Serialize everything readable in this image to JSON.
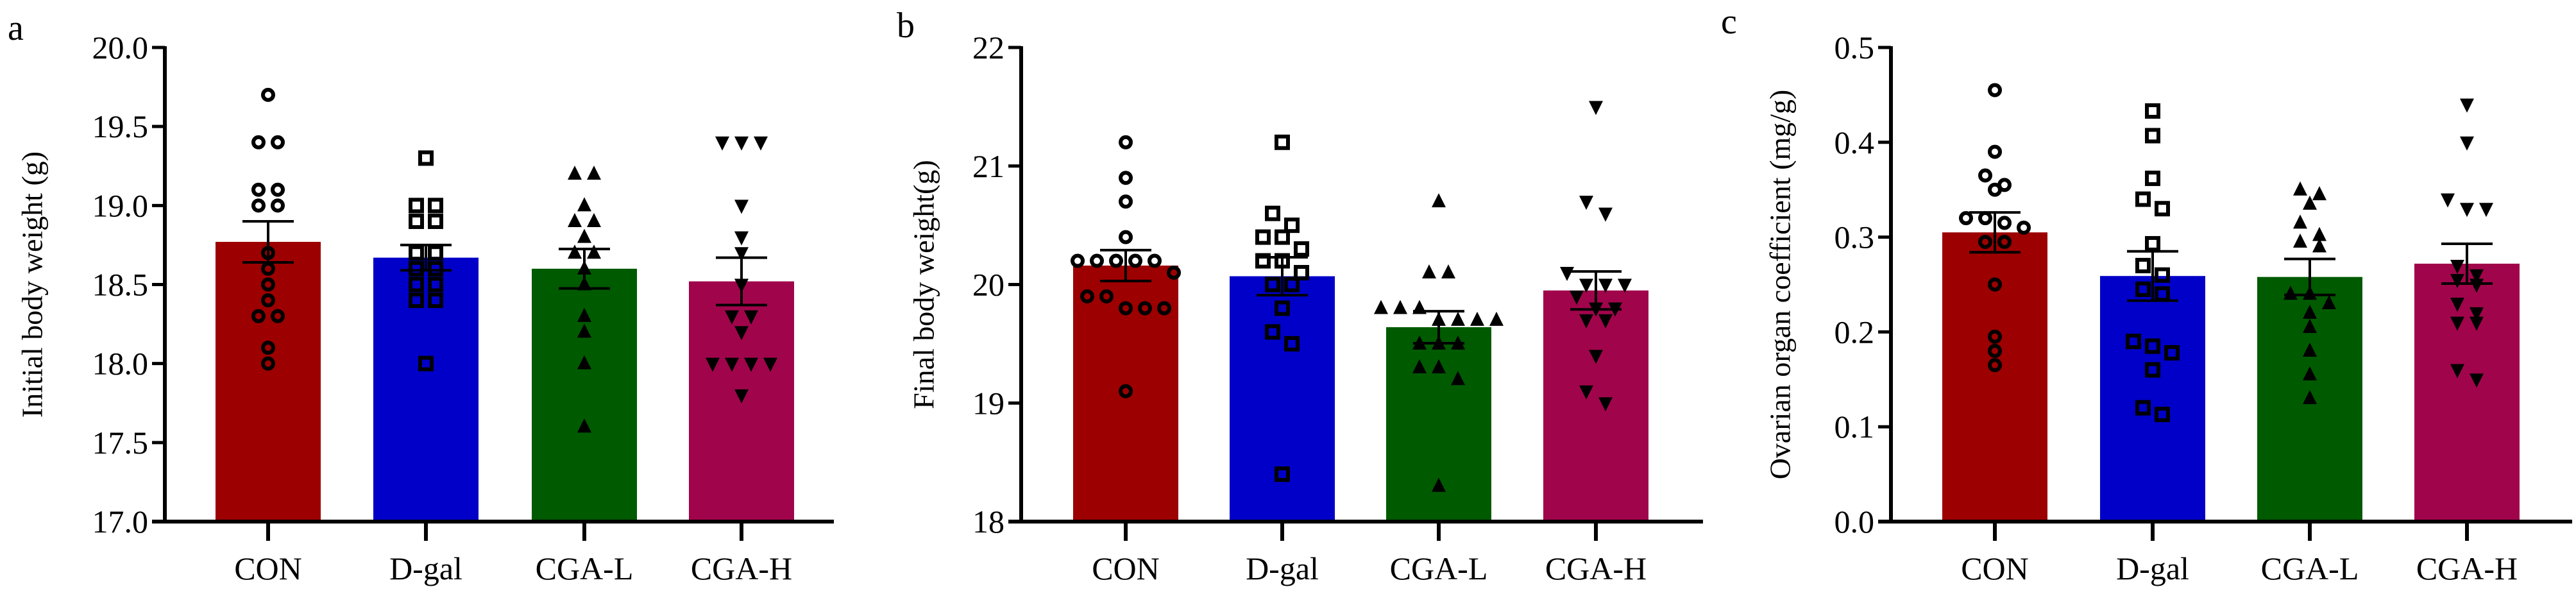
{
  "chart_data": [
    {
      "type": "bar",
      "panel_label": "a",
      "ylabel": "Initial body weight (g)",
      "xlabel": "",
      "ylim": [
        17.0,
        20.0
      ],
      "yticks": [
        "17.0",
        "17.5",
        "18.0",
        "18.5",
        "19.0",
        "19.5",
        "20.0"
      ],
      "categories": [
        "CON",
        "D-gal",
        "CGA-L",
        "CGA-H"
      ],
      "means": [
        18.77,
        18.67,
        18.6,
        18.52
      ],
      "sem": [
        0.13,
        0.08,
        0.125,
        0.15
      ],
      "points": [
        [
          19.7,
          19.4,
          19.4,
          19.1,
          19.1,
          19.0,
          19.0,
          18.7,
          18.6,
          18.5,
          18.4,
          18.3,
          18.3,
          18.1,
          18.0
        ],
        [
          19.3,
          19.0,
          19.0,
          18.9,
          18.9,
          18.7,
          18.7,
          18.6,
          18.6,
          18.5,
          18.5,
          18.4,
          18.4,
          18.0
        ],
        [
          19.2,
          19.2,
          19.0,
          18.9,
          18.9,
          18.8,
          18.7,
          18.7,
          18.6,
          18.5,
          18.3,
          18.2,
          18.0,
          17.6
        ],
        [
          19.4,
          19.4,
          19.4,
          19.0,
          18.8,
          18.7,
          18.5,
          18.3,
          18.3,
          18.2,
          18.0,
          18.0,
          18.0,
          18.0,
          17.8
        ]
      ]
    },
    {
      "type": "bar",
      "panel_label": "b",
      "ylabel": "Final body weight(g)",
      "xlabel": "",
      "ylim": [
        18,
        22
      ],
      "yticks": [
        "18",
        "19",
        "20",
        "21",
        "22"
      ],
      "categories": [
        "CON",
        "D-gal",
        "CGA-L",
        "CGA-H"
      ],
      "means": [
        20.16,
        20.07,
        19.64,
        19.95
      ],
      "sem": [
        0.13,
        0.16,
        0.135,
        0.16
      ],
      "points": [
        [
          21.2,
          20.9,
          20.7,
          20.4,
          20.2,
          20.2,
          20.2,
          20.2,
          20.2,
          20.1,
          19.9,
          19.9,
          19.8,
          19.8,
          19.8,
          19.1
        ],
        [
          21.2,
          20.6,
          20.5,
          20.4,
          20.4,
          20.3,
          20.2,
          20.2,
          20.1,
          20.0,
          20.0,
          19.8,
          19.6,
          19.5,
          18.4
        ],
        [
          20.7,
          20.1,
          20.1,
          19.8,
          19.8,
          19.8,
          19.7,
          19.7,
          19.7,
          19.7,
          19.5,
          19.5,
          19.5,
          19.3,
          19.3,
          19.2,
          18.3
        ],
        [
          21.5,
          20.7,
          20.6,
          20.1,
          20.0,
          20.0,
          20.0,
          19.9,
          19.8,
          19.8,
          19.7,
          19.7,
          19.4,
          19.1,
          19.0
        ]
      ]
    },
    {
      "type": "bar",
      "panel_label": "c",
      "ylabel": "Ovarian organ coefficient (mg/g)",
      "xlabel": "",
      "ylim": [
        0.0,
        0.5
      ],
      "yticks": [
        "0.0",
        "0.1",
        "0.2",
        "0.3",
        "0.4",
        "0.5"
      ],
      "categories": [
        "CON",
        "D-gal",
        "CGA-L",
        "CGA-H"
      ],
      "means": [
        0.305,
        0.259,
        0.258,
        0.272
      ],
      "sem": [
        0.021,
        0.026,
        0.019,
        0.021
      ],
      "points": [
        [
          0.455,
          0.39,
          0.365,
          0.355,
          0.35,
          0.32,
          0.32,
          0.315,
          0.31,
          0.295,
          0.295,
          0.25,
          0.195,
          0.18,
          0.165
        ],
        [
          0.433,
          0.407,
          0.362,
          0.34,
          0.33,
          0.293,
          0.27,
          0.26,
          0.245,
          0.24,
          0.19,
          0.185,
          0.178,
          0.16,
          0.12,
          0.113
        ],
        [
          0.35,
          0.345,
          0.335,
          0.315,
          0.302,
          0.295,
          0.29,
          0.24,
          0.24,
          0.23,
          0.22,
          0.205,
          0.18,
          0.155,
          0.13
        ],
        [
          0.44,
          0.4,
          0.34,
          0.33,
          0.33,
          0.27,
          0.26,
          0.255,
          0.25,
          0.23,
          0.22,
          0.21,
          0.21,
          0.16,
          0.15
        ]
      ]
    }
  ],
  "style": {
    "bar_colors": [
      "#9c0000",
      "#0000c8",
      "#005a00",
      "#a0054b"
    ],
    "markers": [
      "open-circle",
      "open-square",
      "filled-triangle-up",
      "filled-triangle-down"
    ],
    "errorbar": "mean ± SEM",
    "grid": false,
    "legend": "none"
  }
}
